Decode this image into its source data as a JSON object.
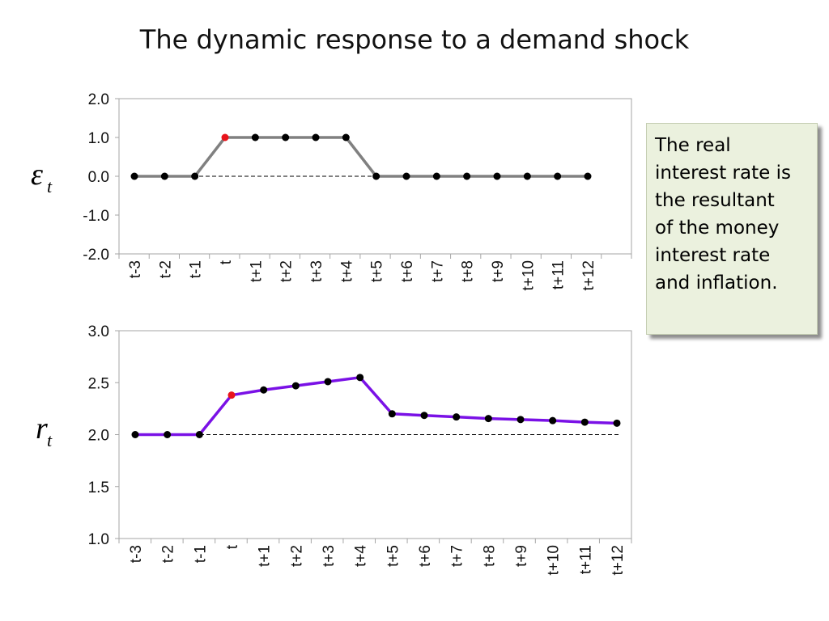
{
  "title": "The dynamic response to a demand shock",
  "note": {
    "lines": [
      "The real",
      "interest rate is",
      "the resultant",
      "of the money",
      "interest rate",
      "and inflation."
    ],
    "background": "#ebf1de"
  },
  "chart_data": [
    {
      "type": "line",
      "ylabel": "ε_t",
      "ylabel_main": "ε",
      "ylabel_sub": "t",
      "ylim": [
        -2.0,
        2.0
      ],
      "yticks": [
        "2.0",
        "1.0",
        "0.0",
        "-1.0",
        "-2.0"
      ],
      "ytick_values": [
        2.0,
        1.0,
        0.0,
        -1.0,
        -2.0
      ],
      "categories": [
        "t-3",
        "t-2",
        "t-1",
        "t",
        "t+1",
        "t+2",
        "t+3",
        "t+4",
        "t+5",
        "t+6",
        "t+7",
        "t+8",
        "t+9",
        "t+10",
        "t+11",
        "t+12"
      ],
      "series": [
        {
          "values": [
            0,
            0,
            0,
            1,
            1,
            1,
            1,
            1,
            0,
            0,
            0,
            0,
            0,
            0,
            0,
            0
          ],
          "color": "#808080"
        }
      ],
      "baseline": 0.0,
      "highlight_category": "t",
      "highlight_color": "#e8141b",
      "marker_color": "#000000",
      "grid": false
    },
    {
      "type": "line",
      "ylabel": "r_t",
      "ylabel_main": "r",
      "ylabel_sub": "t",
      "ylim": [
        1.0,
        3.0
      ],
      "yticks": [
        "3.0",
        "2.5",
        "2.0",
        "1.5",
        "1.0"
      ],
      "ytick_values": [
        3.0,
        2.5,
        2.0,
        1.5,
        1.0
      ],
      "categories": [
        "t-3",
        "t-2",
        "t-1",
        "t",
        "t+1",
        "t+2",
        "t+3",
        "t+4",
        "t+5",
        "t+6",
        "t+7",
        "t+8",
        "t+9",
        "t+10",
        "t+11",
        "t+12"
      ],
      "series": [
        {
          "values": [
            2.0,
            2.0,
            2.0,
            2.38,
            2.43,
            2.47,
            2.51,
            2.55,
            2.2,
            2.185,
            2.17,
            2.155,
            2.145,
            2.135,
            2.12,
            2.11
          ],
          "color": "#7a11e6"
        }
      ],
      "baseline": 2.0,
      "highlight_category": "t",
      "highlight_color": "#e8141b",
      "marker_color": "#000000",
      "grid": false
    }
  ]
}
